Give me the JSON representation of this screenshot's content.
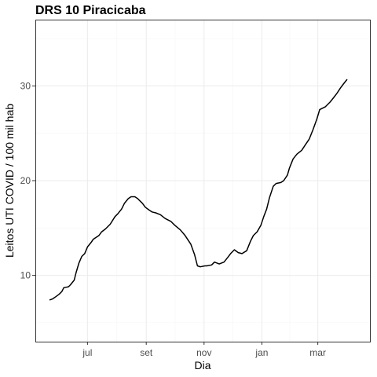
{
  "chart_data": {
    "type": "line",
    "title": "DRS 10 Piracicaba",
    "xlabel": "Dia",
    "ylabel": "Leitos UTI COVID / 100 mil hab",
    "x_ticks": [
      {
        "label": "jul",
        "date": "2020-07-01"
      },
      {
        "label": "set",
        "date": "2020-09-01"
      },
      {
        "label": "nov",
        "date": "2020-11-01"
      },
      {
        "label": "jan",
        "date": "2021-01-01"
      },
      {
        "label": "mar",
        "date": "2021-03-01"
      }
    ],
    "xlim": [
      "2020-05-07",
      "2021-04-25"
    ],
    "y_ticks": [
      10,
      20,
      30
    ],
    "ylim": [
      3.0,
      37.0
    ],
    "grid": true,
    "series": [
      {
        "x": [
          "2020-05-22",
          "2020-05-25",
          "2020-05-28",
          "2020-06-01",
          "2020-06-04",
          "2020-06-06",
          "2020-06-11",
          "2020-06-13",
          "2020-06-17",
          "2020-06-19",
          "2020-06-22",
          "2020-06-25",
          "2020-06-28",
          "2020-07-01",
          "2020-07-05",
          "2020-07-07",
          "2020-07-13",
          "2020-07-16",
          "2020-07-20",
          "2020-07-25",
          "2020-07-30",
          "2020-08-02",
          "2020-08-06",
          "2020-08-09",
          "2020-08-13",
          "2020-08-16",
          "2020-08-20",
          "2020-08-23",
          "2020-08-25",
          "2020-08-28",
          "2020-08-31",
          "2020-09-04",
          "2020-09-07",
          "2020-09-11",
          "2020-09-16",
          "2020-09-21",
          "2020-09-27",
          "2020-10-01",
          "2020-10-07",
          "2020-10-12",
          "2020-10-18",
          "2020-10-22",
          "2020-10-25",
          "2020-10-28",
          "2020-11-02",
          "2020-11-04",
          "2020-11-09",
          "2020-11-12",
          "2020-11-17",
          "2020-11-22",
          "2020-11-26",
          "2020-11-29",
          "2020-12-03",
          "2020-12-07",
          "2020-12-11",
          "2020-12-16",
          "2020-12-20",
          "2020-12-23",
          "2020-12-27",
          "2020-12-31",
          "2021-01-03",
          "2021-01-06",
          "2021-01-09",
          "2021-01-13",
          "2021-01-16",
          "2021-01-21",
          "2021-01-24",
          "2021-01-28",
          "2021-01-30",
          "2021-02-03",
          "2021-02-07",
          "2021-02-12",
          "2021-02-16",
          "2021-02-20",
          "2021-02-24",
          "2021-02-28",
          "2021-03-03",
          "2021-03-09",
          "2021-03-14",
          "2021-03-18",
          "2021-03-21",
          "2021-03-25",
          "2021-03-28",
          "2021-04-01"
        ],
        "y": [
          7.4,
          7.5,
          7.7,
          8.0,
          8.3,
          8.7,
          8.8,
          9.0,
          9.5,
          10.3,
          11.3,
          12.0,
          12.3,
          13.0,
          13.5,
          13.8,
          14.2,
          14.6,
          14.9,
          15.4,
          16.2,
          16.5,
          17.0,
          17.6,
          18.1,
          18.3,
          18.3,
          18.1,
          17.9,
          17.6,
          17.2,
          16.9,
          16.7,
          16.6,
          16.4,
          16.0,
          15.7,
          15.3,
          14.8,
          14.2,
          13.3,
          12.2,
          11.0,
          10.9,
          11.0,
          11.0,
          11.1,
          11.4,
          11.2,
          11.4,
          11.9,
          12.3,
          12.7,
          12.4,
          12.3,
          12.6,
          13.6,
          14.2,
          14.6,
          15.3,
          16.2,
          17.0,
          18.2,
          19.4,
          19.7,
          19.8,
          20.0,
          20.6,
          21.3,
          22.3,
          22.8,
          23.2,
          23.8,
          24.4,
          25.4,
          26.5,
          27.5,
          27.8,
          28.3,
          28.8,
          29.2,
          29.8,
          30.2,
          30.7
        ]
      }
    ]
  }
}
